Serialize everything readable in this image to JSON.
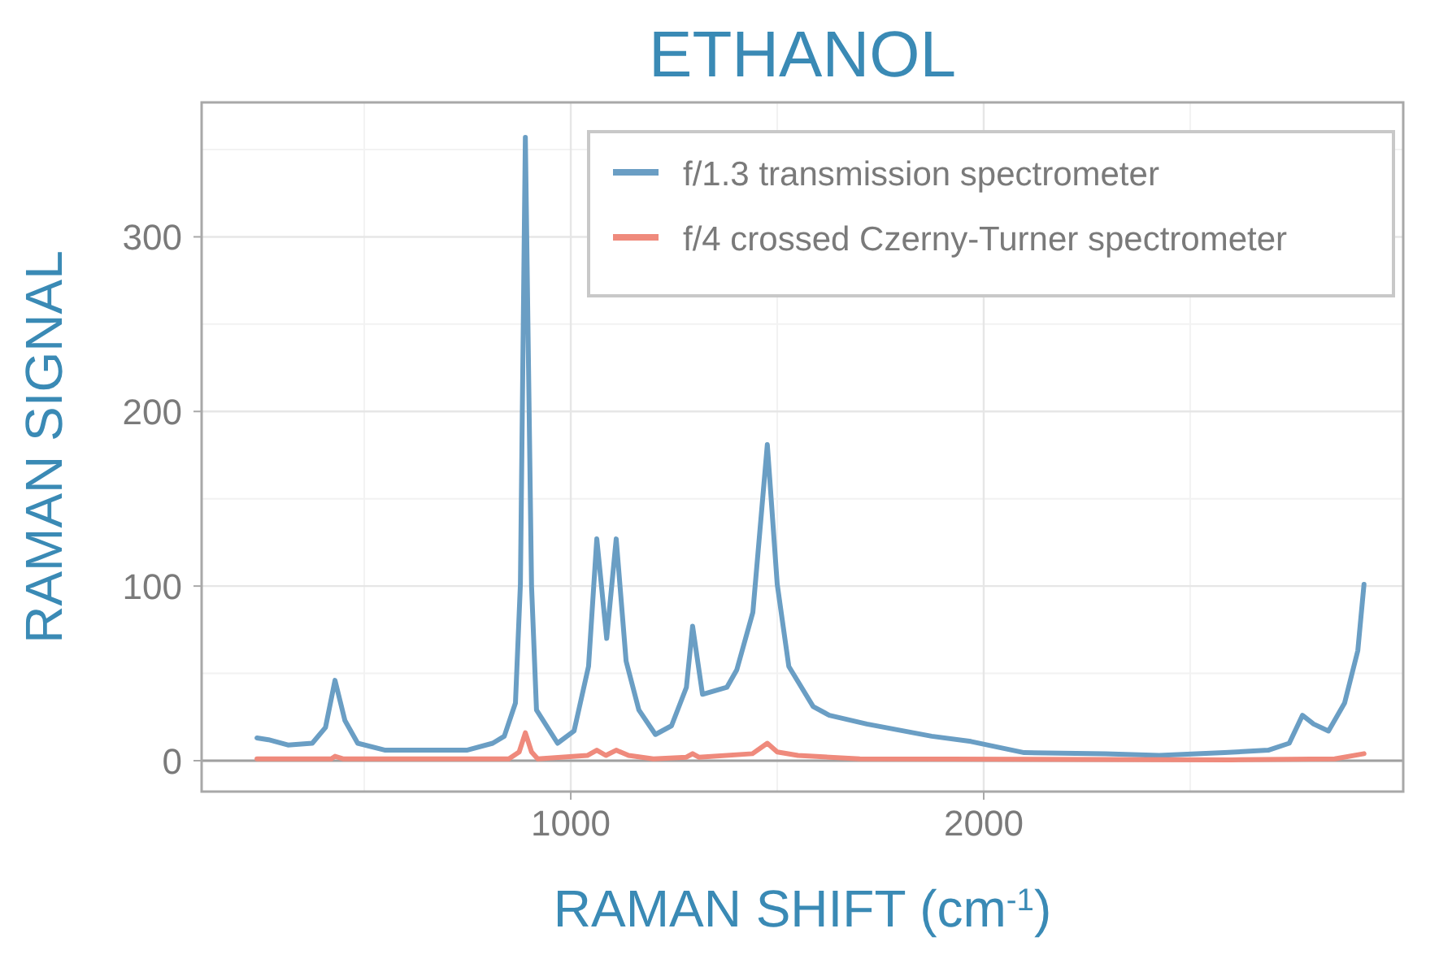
{
  "chart_data": {
    "type": "line",
    "title": "ETHANOL",
    "xlabel": "RAMAN SHIFT (cm$^{-1}$)",
    "ylabel": "RAMAN SIGNAL",
    "xlim": [
      106,
      3016
    ],
    "xticks": [
      1000,
      2000
    ],
    "ylim": [
      -17.7,
      377
    ],
    "yticks": [
      0,
      100,
      200,
      300
    ],
    "grid": true,
    "legend": "top right",
    "line_style": "solid",
    "marker": "none",
    "ref_lines": [
      {
        "axis": "y",
        "value": 0,
        "color": "#a0a0a0"
      }
    ],
    "series": [
      {
        "name": "f/1.3 transmission spectrometer",
        "color": "#6a9ec4",
        "x": [
          240,
          268,
          315,
          374,
          406,
          429,
          453,
          484,
          551,
          748,
          811,
          839,
          866,
          878,
          890,
          905,
          917,
          968,
          1008,
          1043,
          1063,
          1087,
          1110,
          1134,
          1165,
          1205,
          1244,
          1280,
          1295,
          1319,
          1378,
          1402,
          1441,
          1476,
          1500,
          1528,
          1587,
          1626,
          1717,
          1874,
          1969,
          2098,
          2295,
          2425,
          2583,
          2689,
          2740,
          2772,
          2799,
          2835,
          2874,
          2906,
          2921
        ],
        "values": [
          13,
          12,
          9,
          10,
          19,
          46,
          23,
          10,
          6,
          6,
          10,
          14,
          33,
          101,
          357,
          100,
          29,
          10,
          17,
          54,
          127,
          70,
          127,
          57,
          29,
          15,
          20,
          42,
          77,
          38,
          42,
          52,
          85,
          181,
          101,
          54,
          31,
          26,
          21,
          14,
          11,
          4.6,
          4,
          3,
          4.6,
          6,
          10,
          26,
          21,
          17,
          33,
          63,
          101
        ]
      },
      {
        "name": "f/4 crossed Czerny-Turner spectrometer",
        "color": "#ef8a7c",
        "x": [
          240,
          420,
          429,
          450,
          850,
          875,
          890,
          905,
          920,
          1040,
          1063,
          1085,
          1110,
          1140,
          1200,
          1280,
          1295,
          1310,
          1440,
          1476,
          1500,
          1550,
          1700,
          2600,
          2850,
          2921
        ],
        "values": [
          1,
          1,
          2.5,
          1,
          1,
          5,
          16,
          5,
          1,
          3,
          6,
          3,
          6,
          3,
          1,
          2,
          4,
          2,
          4,
          10,
          5,
          3,
          1,
          0.5,
          1,
          4
        ]
      }
    ]
  }
}
